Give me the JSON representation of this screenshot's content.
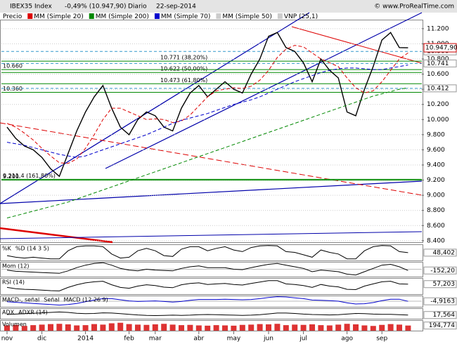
{
  "chart_data": {
    "type": "line",
    "title": "IBEX35 Index",
    "change": "-0,49% (10.947,90)",
    "period": "Diario",
    "date": "22-sep-2014",
    "credit": "© www.ProRealTime.com",
    "categories": [
      "nov",
      null,
      null,
      null,
      "dic",
      null,
      null,
      null,
      null,
      "2014",
      null,
      null,
      null,
      null,
      "feb",
      null,
      null,
      "mar",
      null,
      null,
      null,
      null,
      "abr",
      null,
      null,
      null,
      "may",
      null,
      null,
      null,
      "jun",
      null,
      null,
      null,
      "jul",
      null,
      null,
      null,
      null,
      "ago",
      null,
      null,
      null,
      "sep",
      null,
      null,
      null
    ],
    "series": [
      {
        "name": "Precio",
        "color": "#000000",
        "values": [
          9900,
          9750,
          9650,
          9600,
          9500,
          9350,
          9250,
          9550,
          9850,
          10100,
          10300,
          10450,
          10150,
          9900,
          9800,
          10000,
          10100,
          10050,
          9900,
          9850,
          10150,
          10350,
          10450,
          10300,
          10400,
          10500,
          10400,
          10350,
          10600,
          10800,
          11100,
          11150,
          10950,
          10900,
          10750,
          10500,
          10800,
          10650,
          10550,
          10100,
          10050,
          10400,
          10700,
          11050,
          11150,
          10950,
          10947.9
        ],
        "value_labels": [
          null,
          null,
          null,
          null,
          null,
          null,
          null,
          null,
          null,
          null,
          null,
          null,
          null,
          null,
          null,
          null,
          null,
          null,
          null,
          null,
          null,
          null,
          null,
          null,
          null,
          null,
          null,
          null,
          null,
          null,
          null,
          null,
          null,
          null,
          null,
          null,
          null,
          null,
          null,
          null,
          null,
          null,
          null,
          null,
          null,
          null,
          "10.947,90"
        ]
      },
      {
        "name": "MM (Simple 20)",
        "color": "#dd0000",
        "values": [
          9950,
          9900,
          9820,
          9730,
          9620,
          9520,
          9430,
          9420,
          9480,
          9620,
          9800,
          10000,
          10150,
          10150,
          10100,
          10050,
          10000,
          10010,
          10000,
          9960,
          9980,
          10060,
          10180,
          10300,
          10380,
          10400,
          10420,
          10410,
          10440,
          10520,
          10650,
          10820,
          10930,
          10980,
          10960,
          10880,
          10800,
          10750,
          10700,
          10550,
          10420,
          10350,
          10380,
          10500,
          10650,
          10800,
          10880
        ]
      },
      {
        "name": "MM (Simple 200)",
        "color": "#008800",
        "values": [
          8700,
          8730,
          8760,
          8790,
          8820,
          8850,
          8880,
          8910,
          8950,
          8990,
          9030,
          9070,
          9110,
          9150,
          9190,
          9230,
          9270,
          9310,
          9350,
          9390,
          9430,
          9470,
          9510,
          9550,
          9590,
          9630,
          9670,
          9710,
          9750,
          9790,
          9830,
          9870,
          9910,
          9950,
          9990,
          10030,
          10070,
          10110,
          10150,
          10190,
          10230,
          10270,
          10310,
          10340,
          10370,
          10400,
          10420
        ]
      },
      {
        "name": "MM (Simple 70)",
        "color": "#0000cc",
        "values": [
          9700,
          9680,
          9660,
          9630,
          9600,
          9570,
          9540,
          9520,
          9500,
          9520,
          9560,
          9600,
          9640,
          9680,
          9720,
          9760,
          9800,
          9850,
          9900,
          9950,
          9990,
          10020,
          10050,
          10080,
          10120,
          10160,
          10200,
          10230,
          10260,
          10300,
          10350,
          10400,
          10450,
          10500,
          10540,
          10580,
          10620,
          10650,
          10670,
          10680,
          10680,
          10670,
          10660,
          10660,
          10680,
          10700,
          10720
        ]
      }
    ],
    "legend_inactive": [
      "MM (Simple 50)",
      "VNP (25,1)"
    ],
    "ylim": [
      8380,
      11310
    ],
    "yticks": [
      {
        "value": 8400,
        "label": "8.400"
      },
      {
        "value": 8600,
        "label": "8.600"
      },
      {
        "value": 8800,
        "label": "8.800"
      },
      {
        "value": 9000,
        "label": "9.000"
      },
      {
        "value": 9200,
        "label": "9.200"
      },
      {
        "value": 9400,
        "label": "9.400"
      },
      {
        "value": 9600,
        "label": "9.600"
      },
      {
        "value": 9800,
        "label": "9.800"
      },
      {
        "value": 10000,
        "label": "10.000"
      },
      {
        "value": 10200,
        "label": "10.200"
      },
      {
        "value": 10400,
        "label": "10.400"
      },
      {
        "value": 10600,
        "label": "10.600"
      },
      {
        "value": 10800,
        "label": "10.800"
      },
      {
        "value": 11000,
        "label": "11.000"
      },
      {
        "value": 11200,
        "label": "11.200"
      }
    ],
    "price_levels": [
      {
        "value": 10900,
        "label": "10.900"
      },
      {
        "value": 10741,
        "label": "10.741"
      },
      {
        "value": 10412,
        "label": "10.412"
      }
    ],
    "levels": [
      {
        "value": 10771,
        "label": "10.771 (38,20%)"
      },
      {
        "value": 10622,
        "label": "10.622 (50,00%)"
      },
      {
        "value": 10473,
        "label": "10.473 (61,80%)"
      },
      {
        "value": 10660,
        "label": "10.660"
      },
      {
        "value": 10360,
        "label": "10.360"
      },
      {
        "value": 9200,
        "label": "9.200"
      },
      {
        "value": 9211.4,
        "label": "9.211,4 (161,80%)"
      }
    ]
  },
  "indicators": [
    {
      "labels": [
        "%K",
        "%D (14 3 5)"
      ],
      "color": "#000000",
      "ylim": [
        0,
        100
      ],
      "values": [
        30,
        20,
        15,
        20,
        15,
        10,
        10,
        60,
        85,
        90,
        90,
        85,
        40,
        15,
        20,
        60,
        75,
        60,
        30,
        25,
        70,
        85,
        85,
        60,
        75,
        85,
        65,
        55,
        80,
        90,
        92,
        90,
        55,
        50,
        35,
        20,
        65,
        50,
        40,
        10,
        10,
        60,
        85,
        92,
        90,
        55,
        48.402
      ],
      "value_labels": [
        null,
        null,
        null,
        null,
        null,
        null,
        null,
        null,
        null,
        null,
        null,
        null,
        null,
        null,
        null,
        null,
        null,
        null,
        null,
        null,
        null,
        null,
        null,
        null,
        null,
        null,
        null,
        null,
        null,
        null,
        null,
        null,
        null,
        null,
        null,
        null,
        null,
        null,
        null,
        null,
        null,
        null,
        null,
        null,
        null,
        null,
        "48,402"
      ]
    },
    {
      "labels": [
        "Mom (12)"
      ],
      "color": "#000000",
      "ylim": [
        -900,
        900
      ],
      "values": [
        -100,
        -250,
        -300,
        -350,
        -400,
        -450,
        -500,
        -200,
        200,
        500,
        700,
        800,
        500,
        100,
        -100,
        -200,
        0,
        -100,
        -150,
        -200,
        100,
        300,
        400,
        200,
        200,
        200,
        0,
        -50,
        200,
        400,
        600,
        700,
        500,
        300,
        100,
        -300,
        -100,
        -200,
        -300,
        -600,
        -700,
        -300,
        100,
        500,
        600,
        300,
        -152.2
      ],
      "value_labels": [
        null,
        null,
        null,
        null,
        null,
        null,
        null,
        null,
        null,
        null,
        null,
        null,
        null,
        null,
        null,
        null,
        null,
        null,
        null,
        null,
        null,
        null,
        null,
        null,
        null,
        null,
        null,
        null,
        null,
        null,
        null,
        null,
        null,
        null,
        null,
        null,
        null,
        null,
        null,
        null,
        null,
        null,
        null,
        null,
        null,
        null,
        "-152,20"
      ]
    },
    {
      "labels": [
        "RSI (14)"
      ],
      "color": "#000000",
      "ylim": [
        20,
        80
      ],
      "values": [
        45,
        40,
        38,
        37,
        35,
        33,
        32,
        45,
        55,
        62,
        66,
        68,
        55,
        45,
        42,
        50,
        55,
        52,
        46,
        44,
        55,
        60,
        62,
        56,
        58,
        60,
        56,
        54,
        60,
        65,
        70,
        70,
        58,
        56,
        52,
        45,
        56,
        50,
        47,
        38,
        37,
        50,
        58,
        66,
        68,
        58,
        57.203
      ],
      "value_labels": [
        null,
        null,
        null,
        null,
        null,
        null,
        null,
        null,
        null,
        null,
        null,
        null,
        null,
        null,
        null,
        null,
        null,
        null,
        null,
        null,
        null,
        null,
        null,
        null,
        null,
        null,
        null,
        null,
        null,
        null,
        null,
        null,
        null,
        null,
        null,
        null,
        null,
        null,
        null,
        null,
        null,
        null,
        null,
        null,
        null,
        null,
        "57,203"
      ]
    },
    {
      "labels": [
        "MACD-, señal",
        "Señal",
        "MACD (12 26 9)"
      ],
      "color": "#0000cc",
      "ylim": [
        -200,
        200
      ],
      "values": [
        -20,
        -40,
        -60,
        -80,
        -100,
        -120,
        -140,
        -120,
        -80,
        -20,
        40,
        90,
        90,
        50,
        10,
        -10,
        0,
        10,
        -10,
        -30,
        -10,
        30,
        60,
        60,
        60,
        70,
        60,
        50,
        60,
        90,
        130,
        160,
        150,
        120,
        90,
        40,
        30,
        20,
        0,
        -60,
        -100,
        -90,
        -50,
        20,
        70,
        70,
        -4.9163
      ],
      "value_labels": [
        null,
        null,
        null,
        null,
        null,
        null,
        null,
        null,
        null,
        null,
        null,
        null,
        null,
        null,
        null,
        null,
        null,
        null,
        null,
        null,
        null,
        null,
        null,
        null,
        null,
        null,
        null,
        null,
        null,
        null,
        null,
        null,
        null,
        null,
        null,
        null,
        null,
        null,
        null,
        null,
        null,
        null,
        null,
        null,
        null,
        null,
        "-4,9163"
      ]
    },
    {
      "labels": [
        "ADX",
        "ADXR (14)"
      ],
      "color": "#000000",
      "ylim": [
        0,
        50
      ],
      "values": [
        20,
        22,
        24,
        26,
        28,
        30,
        32,
        30,
        26,
        24,
        25,
        28,
        27,
        24,
        21,
        18,
        16,
        15,
        16,
        17,
        16,
        17,
        19,
        20,
        19,
        18,
        17,
        16,
        17,
        19,
        23,
        27,
        27,
        25,
        22,
        20,
        19,
        18,
        19,
        22,
        25,
        24,
        22,
        21,
        21,
        19,
        17.564
      ],
      "value_labels": [
        null,
        null,
        null,
        null,
        null,
        null,
        null,
        null,
        null,
        null,
        null,
        null,
        null,
        null,
        null,
        null,
        null,
        null,
        null,
        null,
        null,
        null,
        null,
        null,
        null,
        null,
        null,
        null,
        null,
        null,
        null,
        null,
        null,
        null,
        null,
        null,
        null,
        null,
        null,
        null,
        null,
        null,
        null,
        null,
        null,
        null,
        "17,564"
      ]
    },
    {
      "labels": [
        "Volumen"
      ],
      "color": "#dd3333",
      "bars": true,
      "ylim": [
        0,
        400
      ],
      "values": [
        200,
        220,
        180,
        210,
        230,
        250,
        260,
        240,
        200,
        210,
        250,
        230,
        280,
        300,
        250,
        230,
        220,
        240,
        260,
        230,
        210,
        220,
        200,
        190,
        210,
        200,
        190,
        220,
        230,
        250,
        240,
        260,
        210,
        230,
        220,
        240,
        210,
        200,
        230,
        260,
        240,
        200,
        180,
        220,
        250,
        230,
        194.774
      ],
      "value_labels": [
        null,
        null,
        null,
        null,
        null,
        null,
        null,
        null,
        null,
        null,
        null,
        null,
        null,
        null,
        null,
        null,
        null,
        null,
        null,
        null,
        null,
        null,
        null,
        null,
        null,
        null,
        null,
        null,
        null,
        null,
        null,
        null,
        null,
        null,
        null,
        null,
        null,
        null,
        null,
        null,
        null,
        null,
        null,
        null,
        null,
        null,
        "194,774"
      ]
    }
  ]
}
